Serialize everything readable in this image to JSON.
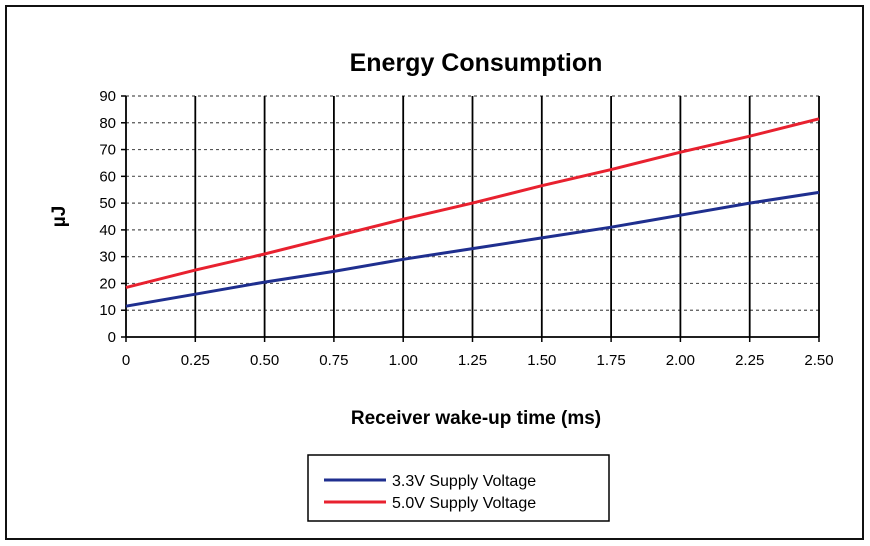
{
  "chart_data": {
    "type": "line",
    "title": "Energy Consumption",
    "xlabel": "Receiver wake-up time (ms)",
    "ylabel": "µJ",
    "x": [
      0,
      0.25,
      0.5,
      0.75,
      1.0,
      1.25,
      1.5,
      1.75,
      2.0,
      2.25,
      2.5
    ],
    "x_tick_labels": [
      "0",
      "0.25",
      "0.50",
      "0.75",
      "1.00",
      "1.25",
      "1.50",
      "1.75",
      "2.00",
      "2.25",
      "2.50"
    ],
    "y_ticks": [
      0,
      10,
      20,
      30,
      40,
      50,
      60,
      70,
      80,
      90
    ],
    "xlim": [
      0,
      2.5
    ],
    "ylim": [
      0,
      90
    ],
    "grid": true,
    "legend_position": "bottom-center",
    "series": [
      {
        "name": "3.3V Supply Voltage",
        "color": "#1f2f8f",
        "values": [
          11.5,
          16,
          20.5,
          24.5,
          29,
          33,
          37,
          41,
          45.5,
          50,
          54
        ]
      },
      {
        "name": "5.0V Supply Voltage",
        "color": "#e8212f",
        "values": [
          18.5,
          25,
          31,
          37.5,
          44,
          50,
          56.5,
          62.5,
          69,
          75,
          81.5
        ]
      }
    ]
  }
}
